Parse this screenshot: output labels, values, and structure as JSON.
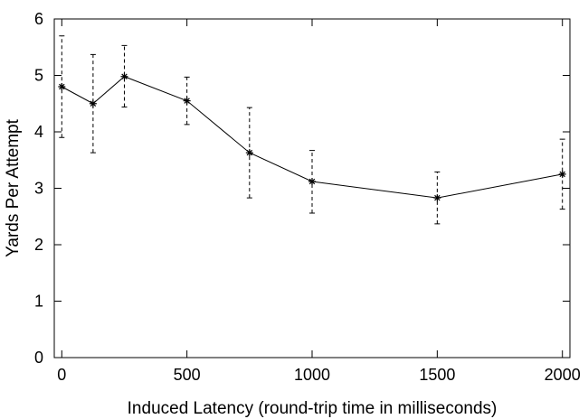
{
  "chart_data": {
    "type": "line",
    "title": "",
    "xlabel": "Induced Latency (round-trip time in milliseconds)",
    "ylabel": "Yards Per Attempt",
    "xlim": [
      -30,
      2030
    ],
    "ylim": [
      0,
      6
    ],
    "xticks": [
      0,
      500,
      1000,
      1500,
      2000
    ],
    "yticks": [
      0,
      1,
      2,
      3,
      4,
      5,
      6
    ],
    "grid": false,
    "legend": "none",
    "line_color": "#000000",
    "marker": "asterisk",
    "error_bars": "dashed",
    "series": [
      {
        "x": [
          0,
          125,
          250,
          500,
          750,
          1000,
          1500,
          2000
        ],
        "y": [
          4.8,
          4.5,
          4.98,
          4.55,
          3.63,
          3.12,
          2.83,
          3.25
        ],
        "err_low": [
          3.9,
          3.63,
          4.44,
          4.13,
          2.83,
          2.56,
          2.37,
          2.63
        ],
        "err_high": [
          5.7,
          5.37,
          5.53,
          4.97,
          4.43,
          3.67,
          3.29,
          3.87
        ]
      }
    ]
  }
}
